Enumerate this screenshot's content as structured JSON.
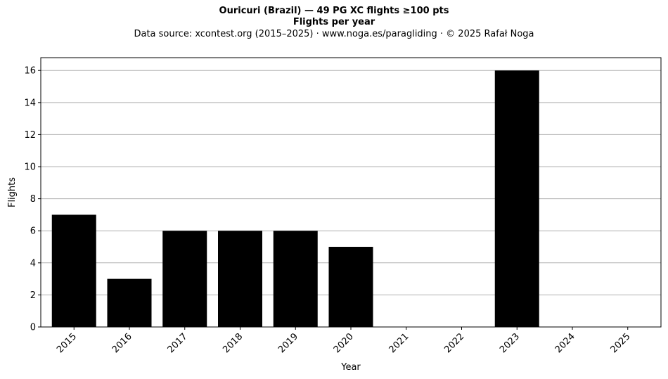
{
  "chart_data": {
    "type": "bar",
    "title": "Ouricuri (Brazil)  —  49 PG XC flights ≥100 pts",
    "subtitle": "Flights per year",
    "source": "Data source: xcontest.org (2015–2025)  ·  www.noga.es/paragliding  ·  © 2025 Rafał Noga",
    "xlabel": "Year",
    "ylabel": "Flights",
    "categories": [
      "2015",
      "2016",
      "2017",
      "2018",
      "2019",
      "2020",
      "2021",
      "2022",
      "2023",
      "2024",
      "2025"
    ],
    "values": [
      7,
      3,
      6,
      6,
      6,
      5,
      0,
      0,
      16,
      0,
      0
    ],
    "ylim": [
      0,
      16.8
    ],
    "yticks": [
      0,
      2,
      4,
      6,
      8,
      10,
      12,
      14,
      16
    ],
    "grid": "horizontal",
    "bar_color": "#000000",
    "grid_color": "#b0b0b0",
    "legend": "none"
  }
}
